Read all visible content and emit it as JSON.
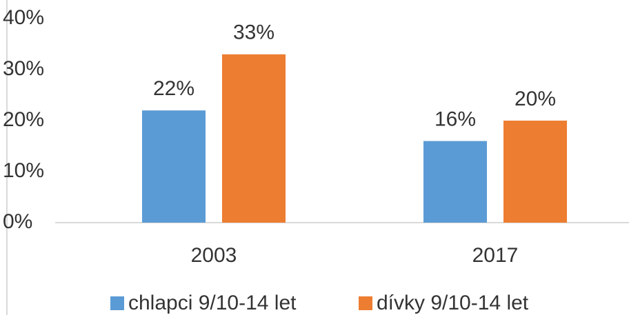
{
  "chart_data": {
    "type": "bar",
    "categories": [
      "2003",
      "2017"
    ],
    "series": [
      {
        "name": "chlapci 9/10-14 let",
        "color": "#5b9bd5",
        "values": [
          22,
          16
        ],
        "value_labels": [
          "22%",
          "16%"
        ]
      },
      {
        "name": "dívky 9/10-14 let",
        "color": "#ed7d31",
        "values": [
          33,
          20
        ],
        "value_labels": [
          "33%",
          "20%"
        ]
      }
    ],
    "ylim": [
      0,
      40
    ],
    "yticks": [
      {
        "value": 0,
        "label": "0%"
      },
      {
        "value": 10,
        "label": "10%"
      },
      {
        "value": 20,
        "label": "20%"
      },
      {
        "value": 30,
        "label": "30%"
      },
      {
        "value": 40,
        "label": "40%"
      }
    ],
    "legend": "bottom"
  }
}
